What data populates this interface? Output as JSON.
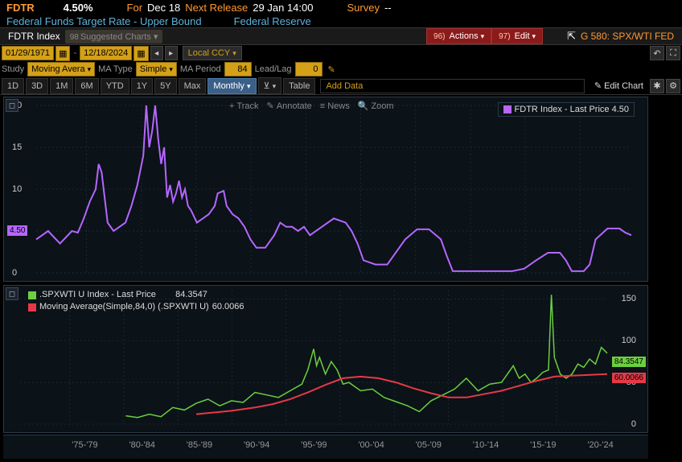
{
  "ticker": {
    "symbol": "FDTR",
    "value": "4.50%",
    "for_label": "For",
    "for_date": "Dec 18",
    "next_label": "Next Release",
    "next_date": "29 Jan 14:00",
    "survey_label": "Survey",
    "survey_value": "--"
  },
  "desc": {
    "name": "Federal Funds Target Rate - Upper Bound",
    "source": "Federal Reserve"
  },
  "header": {
    "title": "FDTR Index",
    "suggested": "Suggested Charts",
    "actions_n": "96)",
    "actions": "Actions",
    "edit_n": "97)",
    "edit": "Edit",
    "g_label": "G 580: SPX/WTI FED"
  },
  "date": {
    "start": "01/29/1971",
    "end": "12/18/2024",
    "local": "Local CCY"
  },
  "study": {
    "study_lbl": "Study",
    "study_val": "Moving Avera",
    "type_lbl": "MA Type",
    "type_val": "Simple",
    "period_lbl": "MA Period",
    "period_val": "84",
    "leadlag_lbl": "Lead/Lag",
    "leadlag_val": "0"
  },
  "tf": {
    "items": [
      "1D",
      "3D",
      "1M",
      "6M",
      "YTD",
      "1Y",
      "5Y",
      "Max"
    ],
    "active": "Monthly",
    "table": "Table",
    "adddata": "Add Data",
    "editchart": "Edit Chart"
  },
  "tools": {
    "track": "Track",
    "annotate": "Annotate",
    "news": "News",
    "zoom": "Zoom"
  },
  "top_chart": {
    "type": "line",
    "series_label": "FDTR Index - Last Price 4.50",
    "color": "#b666ff",
    "ylim": [
      0,
      20
    ],
    "yticks": [
      0,
      5,
      10,
      15,
      20
    ],
    "last_flag_value": "4.50",
    "last_flag_color": "#b666ff",
    "last_flag_y": 159,
    "data": [
      [
        0.0,
        4.0
      ],
      [
        0.02,
        5.0
      ],
      [
        0.04,
        3.5
      ],
      [
        0.06,
        5.0
      ],
      [
        0.07,
        4.8
      ],
      [
        0.08,
        6.5
      ],
      [
        0.09,
        8.5
      ],
      [
        0.1,
        10.0
      ],
      [
        0.105,
        13.0
      ],
      [
        0.11,
        12.0
      ],
      [
        0.115,
        9.0
      ],
      [
        0.12,
        6.0
      ],
      [
        0.13,
        5.0
      ],
      [
        0.14,
        5.5
      ],
      [
        0.15,
        6.0
      ],
      [
        0.16,
        8.0
      ],
      [
        0.17,
        10.5
      ],
      [
        0.18,
        14.0
      ],
      [
        0.185,
        20.0
      ],
      [
        0.19,
        15.0
      ],
      [
        0.195,
        17.0
      ],
      [
        0.2,
        20.0
      ],
      [
        0.205,
        16.0
      ],
      [
        0.21,
        13.0
      ],
      [
        0.215,
        15.0
      ],
      [
        0.22,
        9.0
      ],
      [
        0.225,
        10.5
      ],
      [
        0.23,
        8.5
      ],
      [
        0.235,
        9.5
      ],
      [
        0.24,
        11.0
      ],
      [
        0.245,
        9.0
      ],
      [
        0.25,
        10.0
      ],
      [
        0.255,
        8.0
      ],
      [
        0.26,
        7.5
      ],
      [
        0.27,
        6.0
      ],
      [
        0.28,
        6.5
      ],
      [
        0.29,
        7.0
      ],
      [
        0.3,
        8.0
      ],
      [
        0.305,
        9.5
      ],
      [
        0.315,
        9.8
      ],
      [
        0.32,
        8.0
      ],
      [
        0.33,
        7.0
      ],
      [
        0.34,
        6.5
      ],
      [
        0.35,
        5.5
      ],
      [
        0.36,
        4.0
      ],
      [
        0.37,
        3.0
      ],
      [
        0.385,
        3.0
      ],
      [
        0.4,
        4.5
      ],
      [
        0.41,
        6.0
      ],
      [
        0.42,
        5.5
      ],
      [
        0.43,
        5.5
      ],
      [
        0.44,
        5.0
      ],
      [
        0.45,
        5.5
      ],
      [
        0.46,
        4.5
      ],
      [
        0.48,
        5.5
      ],
      [
        0.5,
        6.5
      ],
      [
        0.52,
        6.0
      ],
      [
        0.53,
        5.0
      ],
      [
        0.54,
        3.5
      ],
      [
        0.55,
        1.5
      ],
      [
        0.57,
        1.0
      ],
      [
        0.59,
        1.0
      ],
      [
        0.6,
        2.0
      ],
      [
        0.62,
        4.0
      ],
      [
        0.64,
        5.2
      ],
      [
        0.66,
        5.2
      ],
      [
        0.68,
        4.0
      ],
      [
        0.69,
        2.0
      ],
      [
        0.7,
        0.2
      ],
      [
        0.72,
        0.2
      ],
      [
        0.75,
        0.2
      ],
      [
        0.78,
        0.2
      ],
      [
        0.8,
        0.2
      ],
      [
        0.82,
        0.5
      ],
      [
        0.84,
        1.5
      ],
      [
        0.86,
        2.4
      ],
      [
        0.88,
        2.4
      ],
      [
        0.89,
        1.5
      ],
      [
        0.9,
        0.2
      ],
      [
        0.92,
        0.2
      ],
      [
        0.93,
        1.0
      ],
      [
        0.94,
        4.0
      ],
      [
        0.96,
        5.3
      ],
      [
        0.98,
        5.3
      ],
      [
        0.99,
        4.8
      ],
      [
        1.0,
        4.5
      ]
    ]
  },
  "bot_chart": {
    "type": "line",
    "series1_label": ".SPXWTI U Index - Last Price",
    "series1_value": "84.3547",
    "series1_color": "#6bcf3f",
    "series2_label": "Moving Average(Simple,84,0) (.SPXWTI U)",
    "series2_value": "60.0066",
    "series2_color": "#e63946",
    "ylim": [
      0,
      160
    ],
    "yticks": [
      0,
      50,
      100,
      150
    ],
    "series1_flag": "84.3547",
    "series2_flag": "60.0066",
    "series1_flag_y": 88,
    "series2_flag_y": 108,
    "data1": [
      [
        0.18,
        10
      ],
      [
        0.2,
        8
      ],
      [
        0.22,
        12
      ],
      [
        0.24,
        9
      ],
      [
        0.26,
        20
      ],
      [
        0.28,
        17
      ],
      [
        0.3,
        25
      ],
      [
        0.32,
        30
      ],
      [
        0.34,
        22
      ],
      [
        0.36,
        28
      ],
      [
        0.38,
        26
      ],
      [
        0.4,
        38
      ],
      [
        0.42,
        35
      ],
      [
        0.44,
        32
      ],
      [
        0.46,
        40
      ],
      [
        0.48,
        48
      ],
      [
        0.49,
        65
      ],
      [
        0.5,
        90
      ],
      [
        0.505,
        70
      ],
      [
        0.51,
        80
      ],
      [
        0.52,
        60
      ],
      [
        0.53,
        75
      ],
      [
        0.54,
        65
      ],
      [
        0.55,
        48
      ],
      [
        0.56,
        50
      ],
      [
        0.58,
        40
      ],
      [
        0.6,
        42
      ],
      [
        0.62,
        32
      ],
      [
        0.64,
        27
      ],
      [
        0.66,
        22
      ],
      [
        0.68,
        15
      ],
      [
        0.7,
        28
      ],
      [
        0.72,
        35
      ],
      [
        0.74,
        42
      ],
      [
        0.76,
        55
      ],
      [
        0.78,
        40
      ],
      [
        0.8,
        48
      ],
      [
        0.82,
        50
      ],
      [
        0.83,
        60
      ],
      [
        0.84,
        70
      ],
      [
        0.85,
        55
      ],
      [
        0.86,
        60
      ],
      [
        0.87,
        50
      ],
      [
        0.88,
        55
      ],
      [
        0.89,
        62
      ],
      [
        0.9,
        65
      ],
      [
        0.905,
        155
      ],
      [
        0.91,
        80
      ],
      [
        0.92,
        60
      ],
      [
        0.93,
        55
      ],
      [
        0.94,
        60
      ],
      [
        0.95,
        72
      ],
      [
        0.96,
        68
      ],
      [
        0.97,
        78
      ],
      [
        0.98,
        72
      ],
      [
        0.99,
        92
      ],
      [
        1.0,
        85
      ]
    ],
    "data2": [
      [
        0.3,
        12
      ],
      [
        0.33,
        14
      ],
      [
        0.36,
        16
      ],
      [
        0.4,
        20
      ],
      [
        0.43,
        24
      ],
      [
        0.46,
        30
      ],
      [
        0.49,
        38
      ],
      [
        0.52,
        47
      ],
      [
        0.55,
        55
      ],
      [
        0.58,
        57
      ],
      [
        0.61,
        55
      ],
      [
        0.64,
        50
      ],
      [
        0.67,
        43
      ],
      [
        0.7,
        37
      ],
      [
        0.73,
        32
      ],
      [
        0.76,
        32
      ],
      [
        0.79,
        36
      ],
      [
        0.82,
        40
      ],
      [
        0.85,
        46
      ],
      [
        0.88,
        52
      ],
      [
        0.91,
        57
      ],
      [
        0.94,
        58
      ],
      [
        0.97,
        59
      ],
      [
        1.0,
        60
      ]
    ]
  },
  "xaxis": {
    "labels": [
      "'75-'79",
      "'80-'84",
      "'85-'89",
      "'90-'94",
      "'95-'99",
      "'00-'04",
      "'05-'09",
      "'10-'14",
      "'15-'19",
      "'20-'24"
    ],
    "positions": [
      0.088,
      0.184,
      0.28,
      0.376,
      0.472,
      0.568,
      0.664,
      0.76,
      0.856,
      0.952
    ]
  },
  "colors": {
    "bg": "#0b1218",
    "grid": "#1c2833",
    "text": "#cccccc",
    "orange": "#ff9933",
    "cyan": "#5fb3d9"
  }
}
